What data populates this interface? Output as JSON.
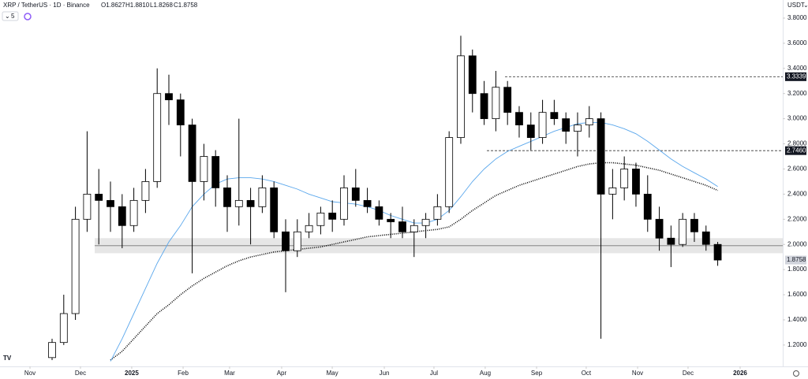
{
  "header": {
    "symbol": "XRP / TetherUS · 1D · Binance",
    "ohlc": [
      "O1.8627",
      "H1.8810",
      "L1.8268",
      "C1.8758"
    ],
    "indicator_count": "5",
    "currency": "USDT"
  },
  "chart_data": {
    "type": "candlestick",
    "categories": [
      null,
      null,
      null,
      null,
      null,
      null,
      null,
      null,
      null,
      null,
      null,
      null,
      null,
      null,
      null,
      null,
      null,
      null,
      null,
      null,
      null,
      null,
      null,
      null,
      null,
      null,
      null,
      null,
      null,
      null,
      null,
      null,
      null,
      null,
      null,
      null,
      null,
      null,
      null,
      null,
      null,
      null,
      null,
      null,
      null,
      null,
      null,
      null,
      null,
      null,
      null,
      null,
      null,
      null,
      null,
      null,
      null,
      null
    ],
    "open": [
      1.1,
      1.22,
      1.45,
      2.2,
      2.4,
      2.35,
      2.3,
      2.15,
      2.35,
      2.5,
      3.2,
      3.15,
      2.95,
      2.5,
      2.7,
      2.45,
      2.3,
      2.35,
      2.3,
      2.45,
      2.1,
      1.95,
      2.1,
      2.15,
      2.25,
      2.2,
      2.45,
      2.35,
      2.3,
      2.2,
      2.18,
      2.1,
      2.15,
      2.2,
      2.3,
      2.85,
      3.5,
      3.2,
      3.0,
      3.25,
      3.05,
      2.95,
      2.85,
      3.05,
      3.0,
      2.9,
      2.95,
      3.0,
      2.4,
      2.45,
      2.6,
      2.4,
      2.2,
      2.05,
      2.0,
      2.2,
      2.1,
      2.0
    ],
    "high": [
      1.25,
      1.6,
      2.3,
      2.9,
      2.6,
      2.5,
      2.4,
      2.45,
      2.6,
      3.4,
      3.35,
      3.2,
      3.0,
      2.8,
      2.75,
      2.55,
      3.0,
      2.45,
      2.55,
      2.5,
      2.2,
      2.2,
      2.25,
      2.3,
      2.35,
      2.55,
      2.6,
      2.45,
      2.35,
      2.25,
      2.3,
      2.2,
      2.25,
      2.4,
      2.9,
      3.66,
      3.55,
      3.3,
      3.38,
      3.3,
      3.1,
      3.05,
      3.15,
      3.15,
      3.05,
      3.05,
      3.1,
      3.05,
      2.6,
      2.7,
      2.65,
      2.55,
      2.3,
      2.15,
      2.25,
      2.25,
      2.15,
      2.02
    ],
    "low": [
      1.08,
      1.2,
      1.4,
      2.1,
      2.0,
      2.1,
      1.97,
      2.1,
      2.25,
      2.45,
      2.95,
      2.7,
      1.77,
      2.35,
      2.3,
      2.1,
      2.15,
      2.0,
      2.25,
      2.05,
      1.62,
      1.9,
      2.05,
      2.08,
      2.1,
      2.15,
      2.3,
      2.25,
      2.15,
      2.05,
      2.05,
      1.9,
      2.05,
      2.15,
      2.25,
      2.8,
      3.05,
      2.95,
      2.9,
      2.95,
      2.85,
      2.75,
      2.8,
      2.95,
      2.8,
      2.7,
      2.85,
      1.25,
      2.2,
      2.35,
      2.3,
      2.1,
      1.95,
      1.82,
      1.98,
      2.02,
      1.95,
      1.83
    ],
    "close": [
      1.22,
      1.45,
      2.2,
      2.4,
      2.35,
      2.3,
      2.15,
      2.35,
      2.5,
      3.2,
      3.15,
      2.95,
      2.5,
      2.7,
      2.45,
      2.3,
      2.35,
      2.3,
      2.45,
      2.1,
      1.95,
      2.1,
      2.15,
      2.25,
      2.2,
      2.45,
      2.35,
      2.3,
      2.2,
      2.18,
      2.1,
      2.15,
      2.2,
      2.3,
      2.85,
      3.5,
      3.2,
      3.0,
      3.25,
      3.05,
      2.95,
      2.85,
      3.05,
      3.0,
      2.9,
      2.95,
      3.0,
      2.4,
      2.45,
      2.6,
      2.4,
      2.2,
      2.05,
      2.0,
      2.2,
      2.1,
      2.0,
      1.8758
    ],
    "overlays": [
      {
        "color": "#000000",
        "style": "dotted",
        "values": [
          null,
          null,
          null,
          null,
          null,
          1.08,
          1.15,
          1.25,
          1.35,
          1.45,
          1.52,
          1.6,
          1.67,
          1.73,
          1.78,
          1.83,
          1.87,
          1.9,
          1.92,
          1.94,
          1.95,
          1.96,
          1.97,
          1.98,
          2.0,
          2.02,
          2.04,
          2.06,
          2.07,
          2.08,
          2.09,
          2.1,
          2.11,
          2.12,
          2.14,
          2.2,
          2.27,
          2.33,
          2.39,
          2.43,
          2.47,
          2.5,
          2.53,
          2.56,
          2.59,
          2.62,
          2.64,
          2.65,
          2.65,
          2.64,
          2.63,
          2.61,
          2.59,
          2.56,
          2.53,
          2.5,
          2.47,
          2.43
        ]
      },
      {
        "color": "#5aa7ec",
        "style": "solid",
        "values": [
          null,
          null,
          null,
          null,
          null,
          1.07,
          1.25,
          1.45,
          1.65,
          1.85,
          2.02,
          2.15,
          2.3,
          2.4,
          2.48,
          2.52,
          2.53,
          2.53,
          2.52,
          2.5,
          2.47,
          2.44,
          2.4,
          2.37,
          2.34,
          2.33,
          2.32,
          2.3,
          2.27,
          2.23,
          2.2,
          2.17,
          2.17,
          2.2,
          2.27,
          2.38,
          2.5,
          2.6,
          2.68,
          2.74,
          2.78,
          2.82,
          2.86,
          2.9,
          2.93,
          2.96,
          2.97,
          2.97,
          2.95,
          2.92,
          2.88,
          2.82,
          2.75,
          2.68,
          2.62,
          2.57,
          2.52,
          2.46
        ]
      }
    ],
    "zone": [
      1.93,
      2.05
    ],
    "zone_line": 1.99,
    "levels": [
      3.3339,
      {
        "value": 2.746,
        "label": "2.7460"
      }
    ],
    "last_price": 1.8758,
    "ylim": [
      1.03,
      3.944
    ],
    "yticks": [
      {
        "value": 1.2,
        "label": "1.2000"
      },
      {
        "value": 1.4,
        "label": "1.4000"
      },
      {
        "value": 1.6,
        "label": "1.6000"
      },
      {
        "value": 1.8,
        "label": "1.8000"
      },
      {
        "value": 2.0,
        "label": "2.0000"
      },
      {
        "value": 2.2,
        "label": "2.2000"
      },
      {
        "value": 2.4,
        "label": "2.4000"
      },
      {
        "value": 2.6,
        "label": "2.6000"
      },
      {
        "value": 2.8,
        "label": "2.8000"
      },
      {
        "value": 3.0,
        "label": "3.0000"
      },
      {
        "value": 3.2,
        "label": "3.2000"
      },
      {
        "value": 3.4,
        "label": "3.4000"
      },
      {
        "value": 3.6,
        "label": "3.6000"
      },
      {
        "value": 3.8,
        "label": "3.8000"
      }
    ],
    "xlim": [
      -4.46,
      62.57
    ],
    "xticks": [
      {
        "value": -1.89,
        "label": "Nov"
      },
      {
        "value": 2.43,
        "label": "Dec"
      },
      {
        "value": 6.82,
        "label": "2025"
      },
      {
        "value": 11.22,
        "label": "Feb"
      },
      {
        "value": 15.2,
        "label": "Mar"
      },
      {
        "value": 19.66,
        "label": "Apr"
      },
      {
        "value": 23.99,
        "label": "May"
      },
      {
        "value": 28.45,
        "label": "Jun"
      },
      {
        "value": 32.7,
        "label": "Jul"
      },
      {
        "value": 37.09,
        "label": "Aug"
      },
      {
        "value": 41.49,
        "label": "Sep"
      },
      {
        "value": 45.74,
        "label": "Oct"
      },
      {
        "value": 50.14,
        "label": "Nov"
      },
      {
        "value": 54.46,
        "label": "Dec"
      },
      {
        "value": 58.92,
        "label": "2026"
      }
    ]
  }
}
